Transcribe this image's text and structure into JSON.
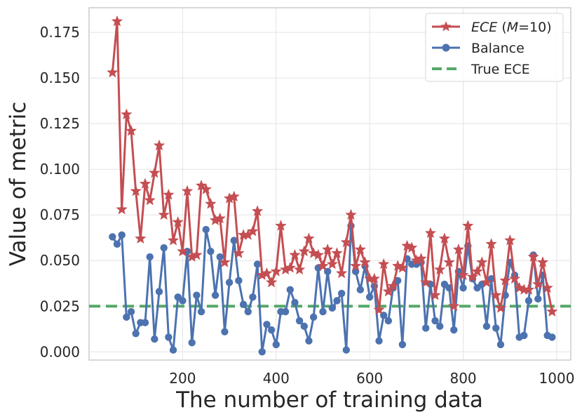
{
  "chart_data": {
    "type": "line",
    "xlabel": "The number of training data",
    "ylabel": "Value of metric",
    "xlim": [
      0,
      1030
    ],
    "ylim": [
      -0.0045,
      0.1885
    ],
    "x_ticks": [
      200,
      400,
      600,
      800,
      1000
    ],
    "x_tick_labels": [
      "200",
      "400",
      "600",
      "800",
      "1000"
    ],
    "y_ticks": [
      0.0,
      0.025,
      0.05,
      0.075,
      0.1,
      0.125,
      0.15,
      0.175
    ],
    "y_tick_labels": [
      "0.000",
      "0.025",
      "0.050",
      "0.075",
      "0.100",
      "0.125",
      "0.150",
      "0.175"
    ],
    "grid": true,
    "legend_position": "top-right",
    "x": [
      50,
      60,
      70,
      80,
      90,
      100,
      110,
      120,
      130,
      140,
      150,
      160,
      170,
      180,
      190,
      200,
      210,
      220,
      230,
      240,
      250,
      260,
      270,
      280,
      290,
      300,
      310,
      320,
      330,
      340,
      350,
      360,
      370,
      380,
      390,
      400,
      410,
      420,
      430,
      440,
      450,
      460,
      470,
      480,
      490,
      500,
      510,
      520,
      530,
      540,
      550,
      560,
      570,
      580,
      590,
      600,
      610,
      620,
      630,
      640,
      650,
      660,
      670,
      680,
      690,
      700,
      710,
      720,
      730,
      740,
      750,
      760,
      770,
      780,
      790,
      800,
      810,
      820,
      830,
      840,
      850,
      860,
      870,
      880,
      890,
      900,
      910,
      920,
      930,
      940,
      950,
      960,
      970,
      980,
      990
    ],
    "series": [
      {
        "name": "ECE",
        "legend_italic": "ECE",
        "legend_rest": " (",
        "legend_m": "M",
        "legend_tail": "=10)",
        "color": "#c44e52",
        "marker": "star",
        "values": [
          0.153,
          0.181,
          0.078,
          0.13,
          0.121,
          0.088,
          0.062,
          0.092,
          0.083,
          0.098,
          0.113,
          0.075,
          0.086,
          0.061,
          0.071,
          0.055,
          0.088,
          0.052,
          0.053,
          0.091,
          0.089,
          0.081,
          0.072,
          0.073,
          0.049,
          0.084,
          0.085,
          0.054,
          0.064,
          0.064,
          0.066,
          0.077,
          0.042,
          0.043,
          0.038,
          0.044,
          0.069,
          0.045,
          0.046,
          0.053,
          0.045,
          0.055,
          0.062,
          0.054,
          0.053,
          0.047,
          0.056,
          0.048,
          0.054,
          0.043,
          0.06,
          0.075,
          0.047,
          0.056,
          0.049,
          0.04,
          0.04,
          0.023,
          0.048,
          0.033,
          0.036,
          0.047,
          0.046,
          0.058,
          0.057,
          0.05,
          0.051,
          0.038,
          0.065,
          0.031,
          0.045,
          0.062,
          0.049,
          0.025,
          0.056,
          0.042,
          0.069,
          0.041,
          0.044,
          0.049,
          0.038,
          0.059,
          0.031,
          0.024,
          0.039,
          0.061,
          0.04,
          0.035,
          0.034,
          0.034,
          0.052,
          0.037,
          0.049,
          0.035,
          0.022
        ]
      },
      {
        "name": "Balance",
        "color": "#4c72b0",
        "marker": "circle",
        "values": [
          0.063,
          0.059,
          0.064,
          0.019,
          0.022,
          0.01,
          0.016,
          0.016,
          0.052,
          0.007,
          0.033,
          0.057,
          0.008,
          0.001,
          0.03,
          0.028,
          0.055,
          0.005,
          0.031,
          0.022,
          0.067,
          0.055,
          0.031,
          0.052,
          0.011,
          0.038,
          0.061,
          0.039,
          0.026,
          0.022,
          0.03,
          0.048,
          0.0,
          0.015,
          0.012,
          0.004,
          0.022,
          0.022,
          0.034,
          0.027,
          0.017,
          0.014,
          0.006,
          0.019,
          0.046,
          0.022,
          0.044,
          0.024,
          0.028,
          0.032,
          0.001,
          0.069,
          0.044,
          0.034,
          0.047,
          0.03,
          0.036,
          0.006,
          0.02,
          0.017,
          0.035,
          0.039,
          0.004,
          0.051,
          0.048,
          0.048,
          0.049,
          0.013,
          0.037,
          0.017,
          0.014,
          0.037,
          0.035,
          0.012,
          0.044,
          0.035,
          0.058,
          0.04,
          0.035,
          0.037,
          0.014,
          0.04,
          0.013,
          0.004,
          0.031,
          0.049,
          0.042,
          0.008,
          0.009,
          0.028,
          0.053,
          0.029,
          0.042,
          0.009,
          0.008
        ]
      }
    ],
    "reference_line": {
      "name": "True ECE",
      "value": 0.025,
      "color": "#55a868",
      "style": "dashed"
    }
  }
}
